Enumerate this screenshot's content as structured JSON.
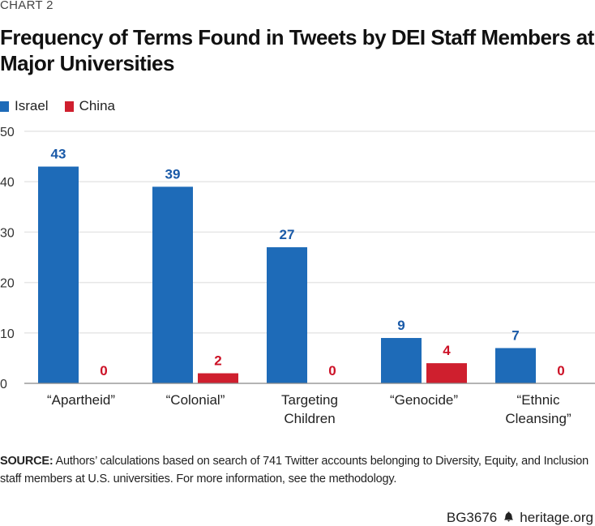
{
  "kicker": "CHART 2",
  "title": "Frequency of Terms Found in Tweets by DEI Staff Members at Major Universities",
  "legend": [
    {
      "label": "Israel",
      "color": "#1e6bb8"
    },
    {
      "label": "China",
      "color": "#cf1f2e"
    }
  ],
  "chart_data": {
    "type": "bar",
    "title": "Frequency of Terms Found in Tweets by DEI Staff Members at Major Universities",
    "xlabel": "",
    "ylabel": "",
    "ylim": [
      0,
      50
    ],
    "yticks": [
      0,
      10,
      20,
      30,
      40,
      50
    ],
    "grid": true,
    "legend_position": "top-left",
    "categories": [
      [
        "“Apartheid”"
      ],
      [
        "“Colonial”"
      ],
      [
        "Targeting",
        "Children"
      ],
      [
        "“Genocide”"
      ],
      [
        "“Ethnic",
        "Cleansing”"
      ]
    ],
    "series": [
      {
        "name": "Israel",
        "color": "#1e6bb8",
        "label_color": "#1a5aa8",
        "values": [
          43,
          39,
          27,
          9,
          7
        ]
      },
      {
        "name": "China",
        "color": "#cf1f2e",
        "label_color": "#cc1126",
        "values": [
          0,
          2,
          0,
          4,
          0
        ]
      }
    ]
  },
  "source": {
    "label": "SOURCE:",
    "text": " Authors’ calculations based on search of 741 Twitter accounts belonging to Diversity, Equity, and Inclusion staff members at U.S. universities. For more information, see the methodology."
  },
  "footer": {
    "code": "BG3676",
    "icon": "liberty-bell-icon",
    "site": "heritage.org"
  }
}
